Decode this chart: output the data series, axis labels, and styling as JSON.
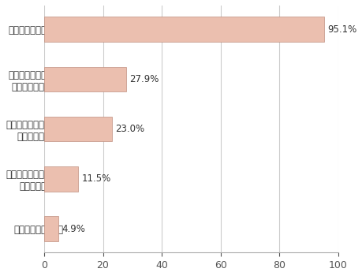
{
  "categories": [
    "その他（自由回答）",
    "在庫管理や販売管理などの\n基幹系システム",
    "顧客管理や営業支援などの\n情報共有システム",
    "勤怠管理やワークフロー\nなどの事務系システム",
    "メールやグループウェア"
  ],
  "values": [
    4.9,
    11.5,
    23.0,
    27.9,
    95.1
  ],
  "labels": [
    "4.9%",
    "11.5%",
    "23.0%",
    "27.9%",
    "95.1%"
  ],
  "bar_color": "#EBBFAF",
  "bar_edgecolor": "#C09080",
  "background_color": "#ffffff",
  "xlim": [
    0,
    100
  ],
  "xticks": [
    0,
    20,
    40,
    60,
    80,
    100
  ],
  "grid_color": "#cccccc",
  "label_fontsize": 8.5,
  "tick_fontsize": 9,
  "bar_height": 0.5,
  "text_color": "#333333"
}
